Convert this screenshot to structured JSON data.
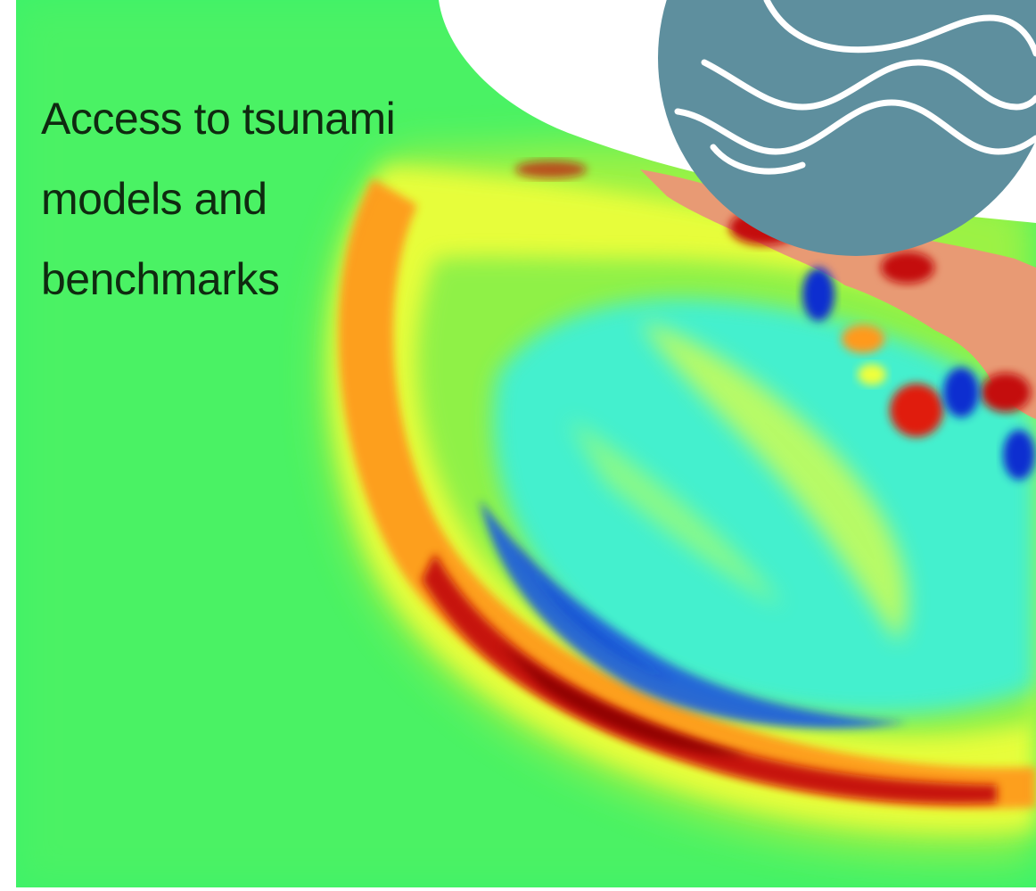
{
  "caption": {
    "line1": "Access to tsunami",
    "line2": "models and",
    "line3": "benchmarks"
  },
  "colors": {
    "background_sea": "#3cf26a",
    "wave_front_red": "#c80a0a",
    "wave_front_orange": "#ff8a1a",
    "wave_front_yellow": "#f4ff3a",
    "trough_cyan": "#3ff0d6",
    "trough_blue": "#0a2fd0",
    "land": "#e89a74",
    "logo_fill": "#5e8f9e",
    "logo_wave": "#ffffff"
  },
  "icons": {
    "logo": "ocean-waves-logo-icon"
  }
}
